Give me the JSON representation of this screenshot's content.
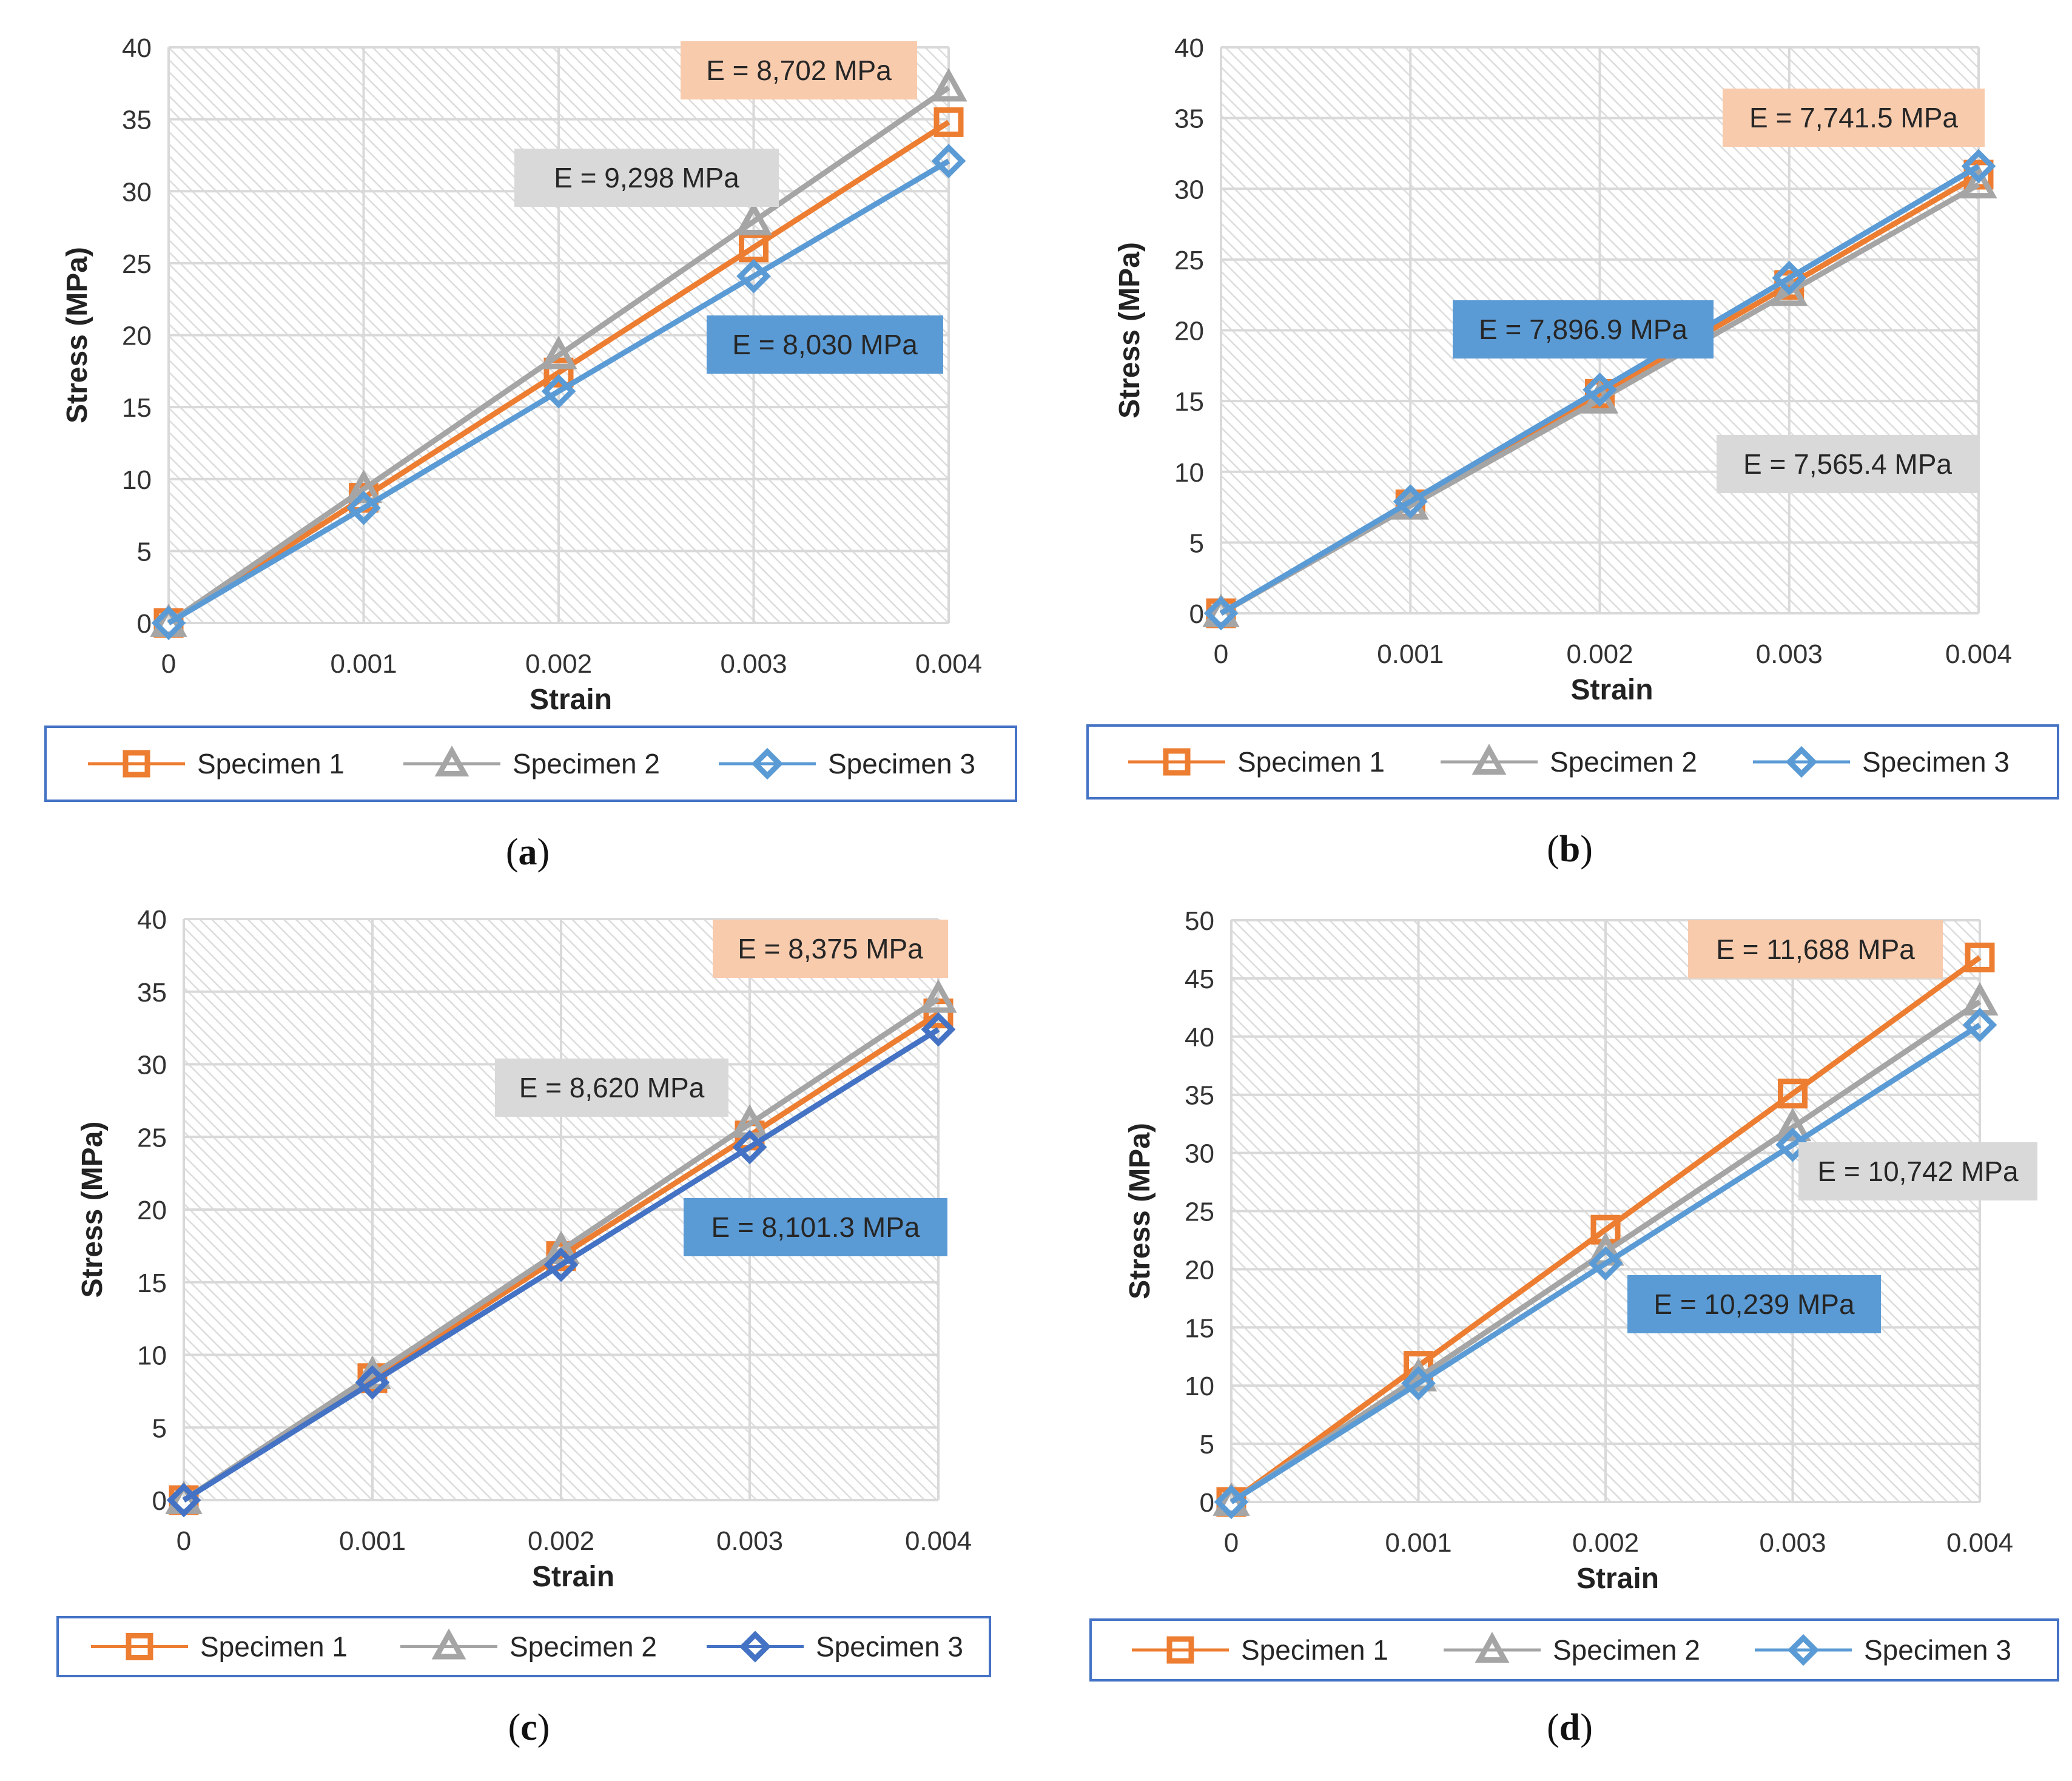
{
  "chart_data": [
    {
      "type": "line",
      "panel": "a",
      "caption_letter": "a",
      "xlabel": "Strain",
      "ylabel": "Stress (MPa)",
      "xlim": [
        0,
        0.004
      ],
      "ylim": [
        0,
        40
      ],
      "x_ticks": [
        "0",
        "0.001",
        "0.002",
        "0.003",
        "0.004"
      ],
      "y_ticks": [
        "0",
        "5",
        "10",
        "15",
        "20",
        "25",
        "30",
        "35",
        "40"
      ],
      "grid": true,
      "legend_position": "bottom",
      "x": [
        0,
        0.001,
        0.002,
        0.003,
        0.004
      ],
      "series": [
        {
          "name": "Specimen 1",
          "marker": "square",
          "color": "#ED7D31",
          "values": [
            0,
            8.7,
            17.4,
            26.1,
            34.8
          ]
        },
        {
          "name": "Specimen 2",
          "marker": "triangle",
          "color": "#A5A5A5",
          "values": [
            0,
            9.3,
            18.6,
            27.9,
            37.2
          ]
        },
        {
          "name": "Specimen 3",
          "marker": "diamond",
          "color": "#5B9BD5",
          "values": [
            0,
            8.0,
            16.1,
            24.1,
            32.1
          ]
        }
      ],
      "annotations": [
        {
          "text": "E = 8,702 MPa",
          "series": 0,
          "fill": "#F8CBAD"
        },
        {
          "text": "E = 9,298 MPa",
          "series": 1,
          "fill": "#D9D9D9"
        },
        {
          "text": "E = 8,030 MPa",
          "series": 2,
          "fill": "#5B9BD5"
        }
      ]
    },
    {
      "type": "line",
      "panel": "b",
      "caption_letter": "b",
      "xlabel": "Strain",
      "ylabel": "Stress (MPa)",
      "xlim": [
        0,
        0.004
      ],
      "ylim": [
        0,
        40
      ],
      "x_ticks": [
        "0",
        "0.001",
        "0.002",
        "0.003",
        "0.004"
      ],
      "y_ticks": [
        "0",
        "5",
        "10",
        "15",
        "20",
        "25",
        "30",
        "35",
        "40"
      ],
      "grid": true,
      "legend_position": "bottom",
      "x": [
        0,
        0.001,
        0.002,
        0.003,
        0.004
      ],
      "series": [
        {
          "name": "Specimen 1",
          "marker": "square",
          "color": "#ED7D31",
          "values": [
            0,
            7.7,
            15.5,
            23.2,
            31.0
          ]
        },
        {
          "name": "Specimen 2",
          "marker": "triangle",
          "color": "#A5A5A5",
          "values": [
            0,
            7.6,
            15.1,
            22.7,
            30.3
          ]
        },
        {
          "name": "Specimen 3",
          "marker": "diamond",
          "color": "#5B9BD5",
          "values": [
            0,
            7.9,
            15.8,
            23.7,
            31.6
          ]
        }
      ],
      "annotations": [
        {
          "text": "E = 7,741.5 MPa",
          "series": 0,
          "fill": "#F8CBAD"
        },
        {
          "text": "E = 7,896.9 MPa",
          "series": 2,
          "fill": "#5B9BD5"
        },
        {
          "text": "E = 7,565.4 MPa",
          "series": 1,
          "fill": "#D9D9D9"
        }
      ]
    },
    {
      "type": "line",
      "panel": "c",
      "caption_letter": "c",
      "xlabel": "Strain",
      "ylabel": "Stress (MPa)",
      "xlim": [
        0,
        0.004
      ],
      "ylim": [
        0,
        40
      ],
      "x_ticks": [
        "0",
        "0.001",
        "0.002",
        "0.003",
        "0.004"
      ],
      "y_ticks": [
        "0",
        "5",
        "10",
        "15",
        "20",
        "25",
        "30",
        "35",
        "40"
      ],
      "grid": true,
      "legend_position": "bottom",
      "x": [
        0,
        0.001,
        0.002,
        0.003,
        0.004
      ],
      "series": [
        {
          "name": "Specimen 1",
          "marker": "square",
          "color": "#ED7D31",
          "values": [
            0,
            8.4,
            16.8,
            25.1,
            33.5
          ]
        },
        {
          "name": "Specimen 2",
          "marker": "triangle",
          "color": "#A5A5A5",
          "values": [
            0,
            8.6,
            17.2,
            25.9,
            34.5
          ]
        },
        {
          "name": "Specimen 3",
          "marker": "diamond",
          "color": "#4472C4",
          "values": [
            0,
            8.1,
            16.2,
            24.3,
            32.4
          ]
        }
      ],
      "annotations": [
        {
          "text": "E = 8,375 MPa",
          "series": 0,
          "fill": "#F8CBAD"
        },
        {
          "text": "E = 8,620 MPa",
          "series": 1,
          "fill": "#D9D9D9"
        },
        {
          "text": "E = 8,101.3 MPa",
          "series": 2,
          "fill": "#5B9BD5"
        }
      ]
    },
    {
      "type": "line",
      "panel": "d",
      "caption_letter": "d",
      "xlabel": "Strain",
      "ylabel": "Stress (MPa)",
      "xlim": [
        0,
        0.004
      ],
      "ylim": [
        0,
        50
      ],
      "x_ticks": [
        "0",
        "0.001",
        "0.002",
        "0.003",
        "0.004"
      ],
      "y_ticks": [
        "0",
        "5",
        "10",
        "15",
        "20",
        "25",
        "30",
        "35",
        "40",
        "45",
        "50"
      ],
      "grid": true,
      "legend_position": "bottom",
      "x": [
        0,
        0.001,
        0.002,
        0.003,
        0.004
      ],
      "series": [
        {
          "name": "Specimen 1",
          "marker": "square",
          "color": "#ED7D31",
          "values": [
            0,
            11.7,
            23.4,
            35.1,
            46.8
          ]
        },
        {
          "name": "Specimen 2",
          "marker": "triangle",
          "color": "#A5A5A5",
          "values": [
            0,
            10.7,
            21.5,
            32.2,
            43.0
          ]
        },
        {
          "name": "Specimen 3",
          "marker": "diamond",
          "color": "#5B9BD5",
          "values": [
            0,
            10.2,
            20.5,
            30.7,
            41.0
          ]
        }
      ],
      "annotations": [
        {
          "text": "E = 11,688 MPa",
          "series": 0,
          "fill": "#F8CBAD"
        },
        {
          "text": "E = 10,742 MPa",
          "series": 1,
          "fill": "#D9D9D9"
        },
        {
          "text": "E = 10,239 MPa",
          "series": 2,
          "fill": "#5B9BD5"
        }
      ]
    }
  ],
  "colors": {
    "grid": "#D9D9D9",
    "hatch": "#DCDCDC",
    "legend_border": "#4472C4",
    "ann_text_light_bg": "#262626"
  }
}
